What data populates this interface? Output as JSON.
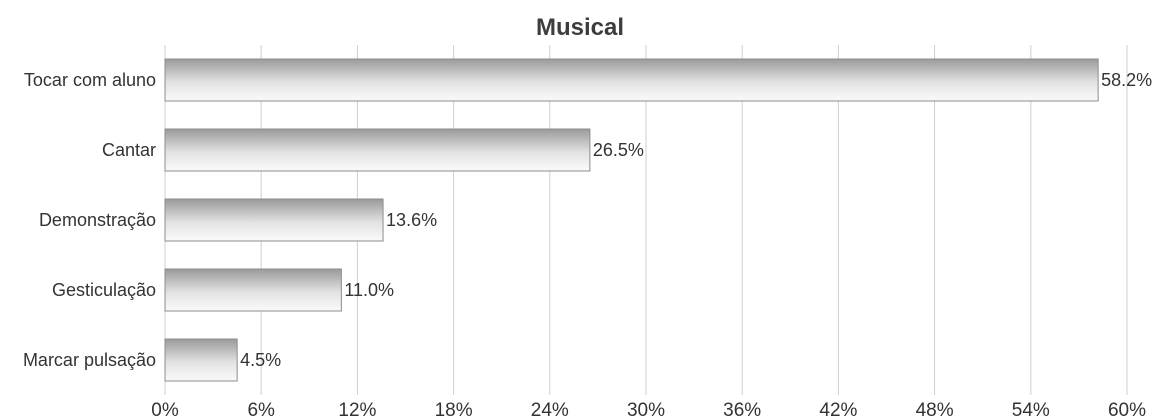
{
  "chart_data": {
    "type": "bar",
    "orientation": "horizontal",
    "title": "Musical",
    "categories": [
      "Tocar com aluno",
      "Cantar",
      "Demonstração",
      "Gesticulação",
      "Marcar pulsação"
    ],
    "values": [
      58.2,
      26.5,
      13.6,
      11.0,
      4.5
    ],
    "value_labels": [
      "58.2%",
      "26.5%",
      "13.6%",
      "11.0%",
      "4.5%"
    ],
    "xlim": [
      0,
      60
    ],
    "x_ticks": [
      0,
      6,
      12,
      18,
      24,
      30,
      36,
      42,
      48,
      54,
      60
    ],
    "x_tick_labels": [
      "0%",
      "6%",
      "12%",
      "18%",
      "24%",
      "30%",
      "36%",
      "42%",
      "48%",
      "54%",
      "60%"
    ],
    "xlabel": "",
    "ylabel": "",
    "grid": true,
    "legend": "none",
    "colors": {
      "bar_dark": "#9a9a9a",
      "bar_light": "#fafafa",
      "bar_stroke": "#8c8c8c",
      "grid": "#cfcfcf",
      "text": "#333333",
      "title": "#3d3d3d"
    }
  }
}
